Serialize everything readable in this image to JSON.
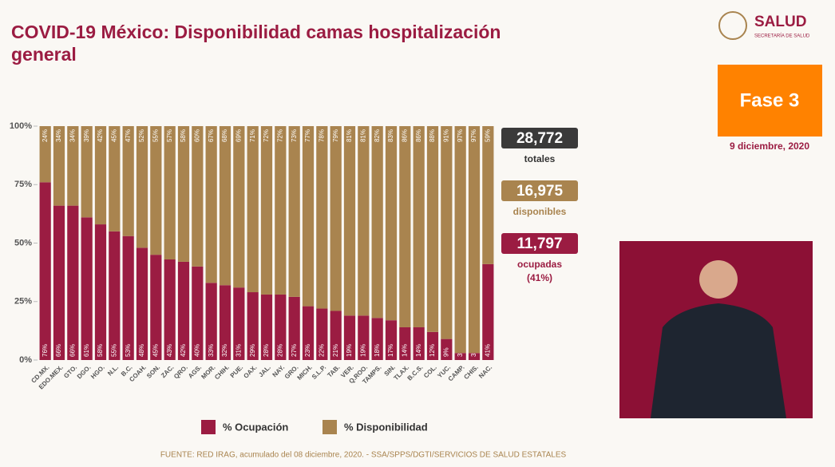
{
  "chart_data": {
    "type": "stacked-bar",
    "title": "COVID-19 México: Disponibilidad camas hospitalización general",
    "categories": [
      "CD.MX.",
      "EDO.MEX.",
      "GTO.",
      "DGO.",
      "HGO.",
      "N.L.",
      "B.C.",
      "COAH.",
      "SON.",
      "ZAC.",
      "QRO.",
      "AGS.",
      "MOR.",
      "CHIH.",
      "PUE.",
      "OAX.",
      "JAL.",
      "NAY.",
      "GRO.",
      "MICH.",
      "S.L.P.",
      "TAB.",
      "VER.",
      "Q.ROO.",
      "TAMPS.",
      "SIN.",
      "TLAX.",
      "B.C.S.",
      "COL.",
      "YUC.",
      "CAMP.",
      "CHIS.",
      "NAC."
    ],
    "series": [
      {
        "name": "% Ocupación",
        "color": "#9b1c42",
        "values": [
          76,
          66,
          66,
          61,
          58,
          55,
          53,
          48,
          45,
          43,
          42,
          40,
          33,
          32,
          31,
          29,
          28,
          28,
          27,
          23,
          22,
          21,
          19,
          19,
          18,
          17,
          14,
          14,
          12,
          9,
          3,
          3,
          41
        ],
        "value_labels": [
          "76%",
          "66%",
          "66%",
          "61%",
          "58%",
          "55%",
          "53%",
          "48%",
          "45%",
          "43%",
          "42%",
          "40%",
          "33%",
          "32%",
          "31%",
          "29%",
          "28%",
          "28%",
          "27%",
          "23%",
          "22%",
          "21%",
          "19%",
          "19%",
          "18%",
          "17%",
          "14%",
          "14%",
          "12%",
          "9%",
          "3%",
          "3%",
          "41%"
        ]
      },
      {
        "name": "% Disponibilidad",
        "color": "#a9844f",
        "values": [
          24,
          34,
          34,
          39,
          42,
          45,
          47,
          52,
          55,
          57,
          58,
          60,
          67,
          68,
          69,
          71,
          72,
          72,
          73,
          77,
          78,
          79,
          81,
          81,
          82,
          83,
          86,
          86,
          88,
          91,
          97,
          97,
          59
        ],
        "value_labels": [
          "24%",
          "34%",
          "34%",
          "39%",
          "42%",
          "45%",
          "47%",
          "52%",
          "55%",
          "57%",
          "58%",
          "60%",
          "67%",
          "68%",
          "69%",
          "71%",
          "72%",
          "72%",
          "73%",
          "77%",
          "78%",
          "79%",
          "81%",
          "81%",
          "82%",
          "83%",
          "86%",
          "86%",
          "88%",
          "91%",
          "97%",
          "97%",
          "59%"
        ]
      }
    ],
    "ylim": [
      0,
      100
    ],
    "yticks": [
      {
        "value": 0,
        "label": "0%"
      },
      {
        "value": 25,
        "label": "25%"
      },
      {
        "value": 50,
        "label": "50%"
      },
      {
        "value": 75,
        "label": "75%"
      },
      {
        "value": 100,
        "label": "100%"
      }
    ],
    "legend": "bottom"
  },
  "logo": {
    "name": "SALUD",
    "subtitle": "SECRETARÍA DE SALUD"
  },
  "phase": "Fase 3",
  "date": "9 diciembre, 2020",
  "summary": [
    {
      "value": "28,772",
      "label": "totales",
      "color": "#3a3a3a"
    },
    {
      "value": "16,975",
      "label": "disponibles",
      "color": "#a9844f"
    },
    {
      "value": "11,797",
      "label": "ocupadas\n(41%)",
      "color": "#9b1c42"
    }
  ],
  "footer": "FUENTE: RED IRAG, acumulado del 08 diciembre, 2020.  -  SSA/SPPS/DGTI/SERVICIOS DE SALUD ESTATALES"
}
